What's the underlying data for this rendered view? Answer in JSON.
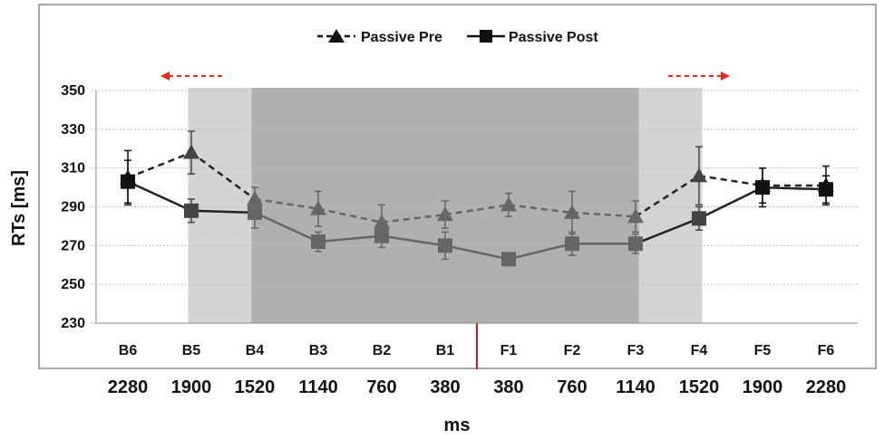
{
  "chart_data": {
    "type": "line",
    "xlabel": "ms",
    "ylabel": "RTs [ms]",
    "ylim": [
      230,
      350
    ],
    "yticks": [
      230,
      250,
      270,
      290,
      310,
      330,
      350
    ],
    "grid": "horizontal",
    "legend_position": "top-center",
    "categories": [
      "B6",
      "B5",
      "B4",
      "B3",
      "B2",
      "B1",
      "F1",
      "F2",
      "F3",
      "F4",
      "F5",
      "F6"
    ],
    "ms_labels": [
      "2280",
      "1900",
      "1520",
      "1140",
      "760",
      "380",
      "380",
      "760",
      "1140",
      "1520",
      "1900",
      "2280"
    ],
    "series": [
      {
        "name": "Passive Pre",
        "marker": "triangle",
        "line_style": "dashed",
        "values": [
          305,
          318,
          294,
          289,
          282,
          286,
          291,
          287,
          285,
          306,
          301,
          301
        ],
        "error": [
          14,
          11,
          6,
          9,
          9,
          7,
          6,
          11,
          8,
          15,
          9,
          10
        ]
      },
      {
        "name": "Passive Post",
        "marker": "square",
        "line_style": "solid",
        "values": [
          303,
          288,
          287,
          272,
          275,
          270,
          263,
          271,
          271,
          284,
          300,
          299
        ],
        "error": [
          11,
          6,
          8,
          5,
          6,
          7,
          3,
          6,
          5,
          6,
          10,
          7
        ]
      }
    ],
    "shaded_regions": [
      {
        "from": "B5",
        "to": "F4",
        "shade": "light"
      },
      {
        "from": "B4",
        "to": "F3",
        "shade": "dark"
      }
    ],
    "annotations": [
      {
        "type": "arrow",
        "direction": "left",
        "color": "#e8291c",
        "over": "B5"
      },
      {
        "type": "arrow",
        "direction": "right",
        "color": "#e8291c",
        "over": "F4"
      },
      {
        "type": "divider",
        "color": "#cc1f1f",
        "between": [
          "B1",
          "F1"
        ]
      }
    ],
    "colors": {
      "light_shade": "#d4d4d4",
      "dark_shade": "#b0b0b0",
      "arrow": "#e8291c",
      "divider": "#cc1f1f",
      "outside_series": "#111111",
      "inside_series": "#666666"
    }
  }
}
